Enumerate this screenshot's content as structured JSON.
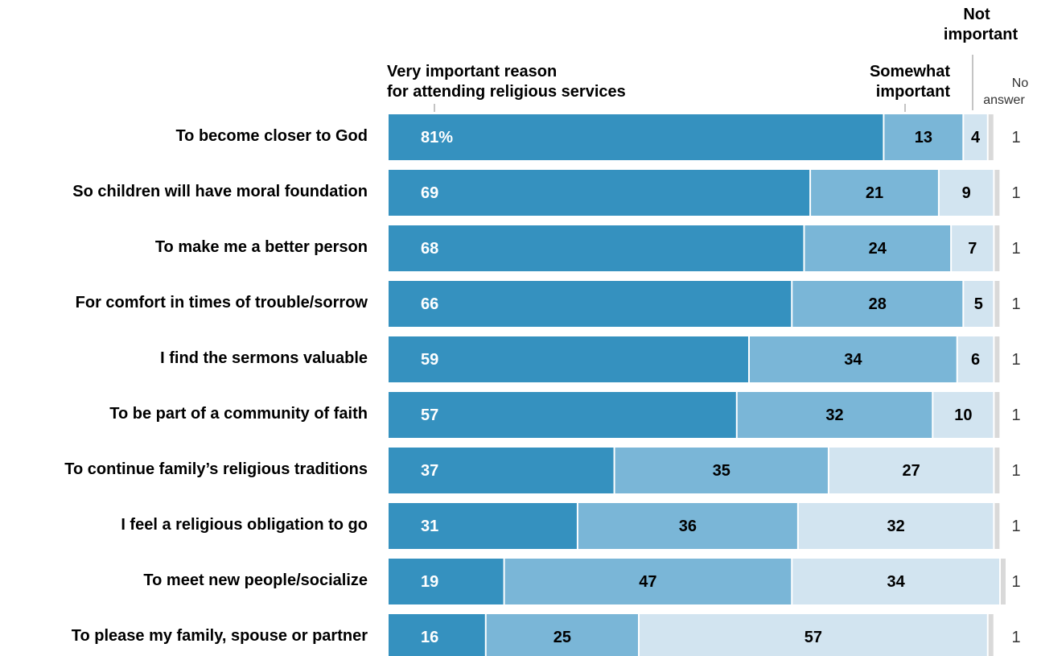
{
  "chart_data": {
    "type": "bar",
    "orientation": "horizontal",
    "stacked": true,
    "title": "",
    "xlabel": "",
    "ylabel": "",
    "xlim": [
      0,
      100
    ],
    "grid": false,
    "legend": "column headers above bars",
    "categories": [
      "To become closer to God",
      "So children will have moral foundation",
      "To make me a better person",
      "For comfort in times of trouble/sorrow",
      "I find the sermons valuable",
      "To be part of a community of faith",
      "To continue family’s religious traditions",
      "I feel a religious obligation to go",
      "To meet new people/socialize",
      "To please my family, spouse or partner"
    ],
    "series": [
      {
        "name": "Very important reason for attending religious services",
        "color": "#3591bf",
        "values": [
          81,
          69,
          68,
          66,
          59,
          57,
          37,
          31,
          19,
          16
        ]
      },
      {
        "name": "Somewhat important",
        "color": "#7ab6d7",
        "values": [
          13,
          21,
          24,
          28,
          34,
          32,
          35,
          36,
          47,
          25
        ]
      },
      {
        "name": "Not important",
        "color": "#d2e4f0",
        "values": [
          4,
          9,
          7,
          5,
          6,
          10,
          27,
          32,
          34,
          57
        ]
      },
      {
        "name": "No answer",
        "color": "#d9d9d9",
        "values": [
          1,
          1,
          1,
          1,
          1,
          1,
          1,
          1,
          1,
          1
        ]
      }
    ],
    "value_labels": [
      [
        "81%",
        "13",
        "4",
        "1"
      ],
      [
        "69",
        "21",
        "9",
        "1"
      ],
      [
        "68",
        "24",
        "7",
        "1"
      ],
      [
        "66",
        "28",
        "5",
        "1"
      ],
      [
        "59",
        "34",
        "6",
        "1"
      ],
      [
        "57",
        "32",
        "10",
        "1"
      ],
      [
        "37",
        "35",
        "27",
        "1"
      ],
      [
        "31",
        "36",
        "32",
        "1"
      ],
      [
        "19",
        "47",
        "34",
        "1"
      ],
      [
        "16",
        "25",
        "57",
        "1"
      ]
    ],
    "header_labels": {
      "very": [
        "Very important reason",
        "for attending religious services"
      ],
      "somewhat": [
        "Somewhat",
        "important"
      ],
      "not": [
        "Not",
        "important"
      ],
      "no_answer": [
        "No",
        "answer"
      ]
    }
  }
}
